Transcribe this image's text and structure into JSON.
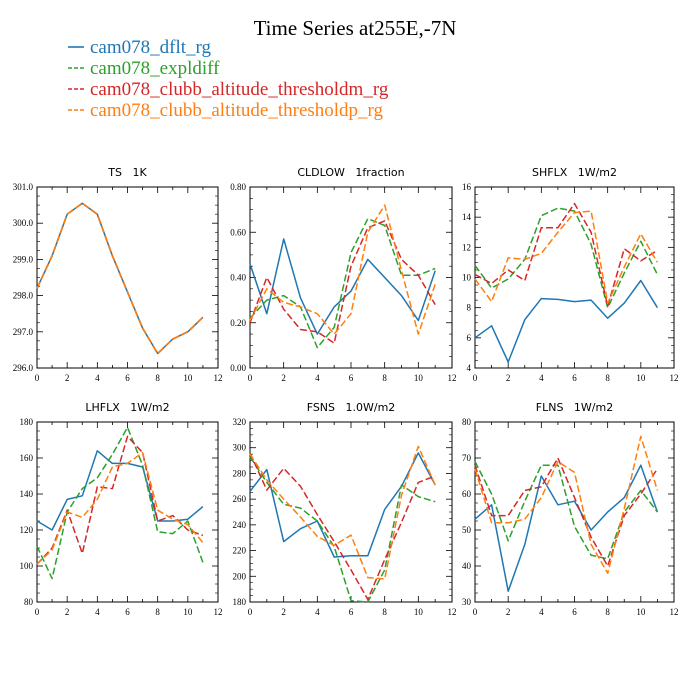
{
  "title": "Time Series at255E,-7N",
  "legend": [
    {
      "label": "cam078_dflt_rg",
      "color": "#1f77b4",
      "dash": "solid"
    },
    {
      "label": "cam078_expldiff",
      "color": "#2ca02c",
      "dash": "dashed"
    },
    {
      "label": "cam078_clubb_altitude_thresholdm_rg",
      "color": "#d62728",
      "dash": "dashed"
    },
    {
      "label": "cam078_clubb_altitude_thresholdp_rg",
      "color": "#ff7f0e",
      "dash": "dashed"
    }
  ],
  "chart_data": [
    {
      "type": "line",
      "title": "TS   1K",
      "x": [
        0,
        1,
        2,
        3,
        4,
        5,
        6,
        7,
        8,
        9,
        10,
        11
      ],
      "xlim": [
        0,
        12
      ],
      "xticks": [
        0,
        2,
        4,
        6,
        8,
        10,
        12
      ],
      "ylim": [
        296.0,
        301.0
      ],
      "yticks": [
        "296.0",
        "297.0",
        "298.0",
        "299.0",
        "300.0",
        "301.0"
      ],
      "series": [
        {
          "name": "cam078_dflt_rg",
          "values": [
            298.2,
            299.1,
            300.25,
            300.55,
            300.25,
            299.1,
            298.1,
            297.1,
            296.4,
            296.8,
            297.0,
            297.4
          ]
        },
        {
          "name": "cam078_expldiff",
          "values": [
            298.2,
            299.1,
            300.25,
            300.55,
            300.25,
            299.1,
            298.1,
            297.1,
            296.4,
            296.8,
            297.0,
            297.4
          ]
        },
        {
          "name": "cam078_clubb_altitude_thresholdm_rg",
          "values": [
            298.2,
            299.1,
            300.25,
            300.55,
            300.25,
            299.1,
            298.1,
            297.1,
            296.4,
            296.8,
            297.0,
            297.4
          ]
        },
        {
          "name": "cam078_clubb_altitude_thresholdp_rg",
          "values": [
            298.2,
            299.1,
            300.25,
            300.55,
            300.25,
            299.1,
            298.1,
            297.1,
            296.4,
            296.8,
            297.0,
            297.4
          ]
        }
      ]
    },
    {
      "type": "line",
      "title": "CLDLOW   1fraction",
      "x": [
        0,
        1,
        2,
        3,
        4,
        5,
        6,
        7,
        8,
        9,
        10,
        11
      ],
      "xlim": [
        0,
        12
      ],
      "xticks": [
        0,
        2,
        4,
        6,
        8,
        10,
        12
      ],
      "ylim": [
        0.0,
        0.8
      ],
      "yticks": [
        "0.00",
        "0.20",
        "0.40",
        "0.60",
        "0.80"
      ],
      "series": [
        {
          "name": "cam078_dflt_rg",
          "values": [
            0.46,
            0.24,
            0.57,
            0.31,
            0.15,
            0.27,
            0.34,
            0.48,
            0.4,
            0.32,
            0.21,
            0.43
          ]
        },
        {
          "name": "cam078_expldiff",
          "values": [
            0.22,
            0.3,
            0.32,
            0.27,
            0.09,
            0.18,
            0.51,
            0.66,
            0.63,
            0.41,
            0.41,
            0.44
          ]
        },
        {
          "name": "cam078_clubb_altitude_thresholdm_rg",
          "values": [
            0.2,
            0.4,
            0.26,
            0.17,
            0.16,
            0.11,
            0.45,
            0.62,
            0.65,
            0.48,
            0.41,
            0.28
          ]
        },
        {
          "name": "cam078_clubb_altitude_thresholdp_rg",
          "values": [
            0.21,
            0.35,
            0.29,
            0.27,
            0.24,
            0.15,
            0.24,
            0.6,
            0.72,
            0.43,
            0.15,
            0.37
          ]
        }
      ]
    },
    {
      "type": "line",
      "title": "SHFLX   1W/m2",
      "x": [
        0,
        1,
        2,
        3,
        4,
        5,
        6,
        7,
        8,
        9,
        10,
        11
      ],
      "xlim": [
        0,
        12
      ],
      "xticks": [
        0,
        2,
        4,
        6,
        8,
        10,
        12
      ],
      "ylim": [
        4,
        16
      ],
      "yticks": [
        "4",
        "6",
        "8",
        "10",
        "12",
        "14",
        "16"
      ],
      "series": [
        {
          "name": "cam078_dflt_rg",
          "values": [
            6.0,
            6.8,
            4.4,
            7.2,
            8.6,
            8.55,
            8.4,
            8.5,
            7.3,
            8.3,
            9.8,
            8.0
          ]
        },
        {
          "name": "cam078_expldiff",
          "values": [
            10.8,
            9.3,
            9.9,
            11.2,
            14.1,
            14.6,
            14.4,
            12.2,
            8.0,
            10.3,
            12.4,
            10.2
          ]
        },
        {
          "name": "cam078_clubb_altitude_thresholdm_rg",
          "values": [
            10.2,
            9.6,
            10.5,
            9.8,
            13.3,
            13.3,
            14.9,
            13.0,
            8.1,
            11.9,
            11.1,
            11.8
          ]
        },
        {
          "name": "cam078_clubb_altitude_thresholdp_rg",
          "values": [
            9.9,
            8.4,
            11.3,
            11.2,
            11.6,
            13.0,
            14.3,
            14.4,
            8.3,
            10.7,
            12.9,
            11.0
          ]
        }
      ]
    },
    {
      "type": "line",
      "title": "LHFLX   1W/m2",
      "x": [
        0,
        1,
        2,
        3,
        4,
        5,
        6,
        7,
        8,
        9,
        10,
        11
      ],
      "xlim": [
        0,
        12
      ],
      "xticks": [
        0,
        2,
        4,
        6,
        8,
        10,
        12
      ],
      "ylim": [
        80,
        180
      ],
      "yticks": [
        "80",
        "100",
        "120",
        "140",
        "160",
        "180"
      ],
      "series": [
        {
          "name": "cam078_dflt_rg",
          "values": [
            125,
            120,
            137,
            139,
            164,
            157,
            157,
            155,
            125,
            125,
            126,
            133
          ]
        },
        {
          "name": "cam078_expldiff",
          "values": [
            111,
            93,
            130,
            143,
            149,
            162,
            177,
            156,
            119,
            118,
            125,
            102
          ]
        },
        {
          "name": "cam078_clubb_altitude_thresholdm_rg",
          "values": [
            101,
            110,
            131,
            107,
            144,
            143,
            172,
            163,
            125,
            128,
            120,
            117
          ]
        },
        {
          "name": "cam078_clubb_altitude_thresholdp_rg",
          "values": [
            101,
            109,
            130,
            127,
            137,
            155,
            157,
            163,
            131,
            126,
            123,
            113
          ]
        }
      ]
    },
    {
      "type": "line",
      "title": "FSNS   1.0W/m2",
      "x": [
        0,
        1,
        2,
        3,
        4,
        5,
        6,
        7,
        8,
        9,
        10,
        11
      ],
      "xlim": [
        0,
        12
      ],
      "xticks": [
        0,
        2,
        4,
        6,
        8,
        10,
        12
      ],
      "ylim": [
        180,
        320
      ],
      "yticks": [
        "180",
        "200",
        "220",
        "240",
        "260",
        "280",
        "300",
        "320"
      ],
      "series": [
        {
          "name": "cam078_dflt_rg",
          "values": [
            266,
            283,
            227,
            237,
            243,
            215,
            216,
            216,
            252,
            270,
            296,
            271
          ]
        },
        {
          "name": "cam078_expldiff",
          "values": [
            293,
            273,
            256,
            253,
            243,
            223,
            181,
            180,
            205,
            271,
            262,
            258
          ]
        },
        {
          "name": "cam078_clubb_altitude_thresholdm_rg",
          "values": [
            296,
            267,
            284,
            270,
            248,
            227,
            205,
            182,
            213,
            242,
            273,
            278
          ]
        },
        {
          "name": "cam078_clubb_altitude_thresholdp_rg",
          "values": [
            295,
            275,
            260,
            246,
            231,
            224,
            232,
            199,
            198,
            263,
            301,
            271
          ]
        }
      ]
    },
    {
      "type": "line",
      "title": "FLNS   1W/m2",
      "x": [
        0,
        1,
        2,
        3,
        4,
        5,
        6,
        7,
        8,
        9,
        10,
        11
      ],
      "xlim": [
        0,
        12
      ],
      "xticks": [
        0,
        2,
        4,
        6,
        8,
        10,
        12
      ],
      "ylim": [
        30,
        80
      ],
      "yticks": [
        "30",
        "40",
        "50",
        "60",
        "70",
        "80"
      ],
      "series": [
        {
          "name": "cam078_dflt_rg",
          "values": [
            53,
            57,
            33,
            46,
            65,
            57,
            58,
            50,
            55,
            59,
            68,
            55
          ]
        },
        {
          "name": "cam078_expldiff",
          "values": [
            69,
            60,
            47,
            58,
            68,
            68,
            51,
            43,
            42,
            55,
            61,
            55
          ]
        },
        {
          "name": "cam078_clubb_altitude_thresholdm_rg",
          "values": [
            68,
            54,
            54,
            61,
            62,
            70,
            59,
            48,
            40,
            54,
            60,
            67
          ]
        },
        {
          "name": "cam078_clubb_altitude_thresholdp_rg",
          "values": [
            67,
            52,
            52,
            53,
            59,
            69,
            66,
            46,
            38,
            56,
            76,
            61
          ]
        }
      ]
    }
  ]
}
